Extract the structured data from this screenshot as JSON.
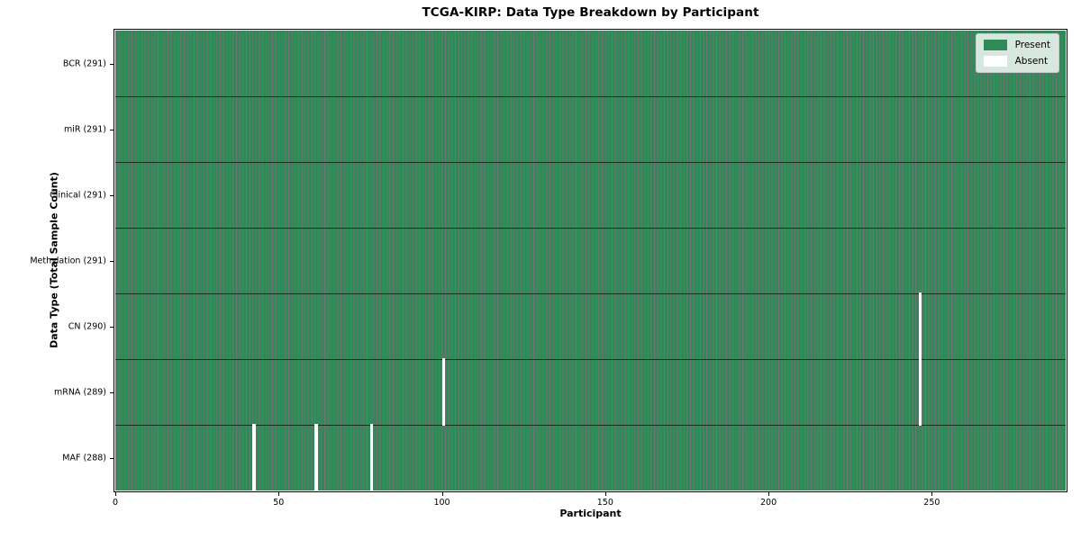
{
  "chart_data": {
    "type": "heatmap",
    "title": "TCGA-KIRP: Data Type Breakdown by Participant",
    "xlabel": "Participant",
    "ylabel": "Data Type (Total Sample Count)",
    "n_participants": 291,
    "xlim": [
      0,
      291
    ],
    "x_ticks": [
      0,
      50,
      100,
      150,
      200,
      250
    ],
    "legend_position": "upper right",
    "grid": false,
    "legend": [
      {
        "label": "Present",
        "color": "#2e8b57"
      },
      {
        "label": "Absent",
        "color": "#ffffff"
      }
    ],
    "rows": [
      {
        "label": "BCR (291)",
        "data_type": "BCR",
        "total_samples": 291,
        "missing_participants": []
      },
      {
        "label": "miR (291)",
        "data_type": "miR",
        "total_samples": 291,
        "missing_participants": []
      },
      {
        "label": "Clinical (291)",
        "data_type": "Clinical",
        "total_samples": 291,
        "missing_participants": []
      },
      {
        "label": "Methylation (291)",
        "data_type": "Methylation",
        "total_samples": 291,
        "missing_participants": []
      },
      {
        "label": "CN (290)",
        "data_type": "CN",
        "total_samples": 290,
        "missing_participants": [
          246
        ]
      },
      {
        "label": "mRNA (289)",
        "data_type": "mRNA",
        "total_samples": 289,
        "missing_participants": [
          100,
          246
        ]
      },
      {
        "label": "MAF (288)",
        "data_type": "MAF",
        "total_samples": 288,
        "missing_participants": [
          42,
          61,
          78
        ]
      }
    ],
    "colors": {
      "present": "#2e8b57",
      "absent": "#ffffff",
      "cell_edge": "rgba(0,0,0,0.55)",
      "row_divider": "rgba(0,0,0,0.65)",
      "frame": "#000000"
    }
  }
}
